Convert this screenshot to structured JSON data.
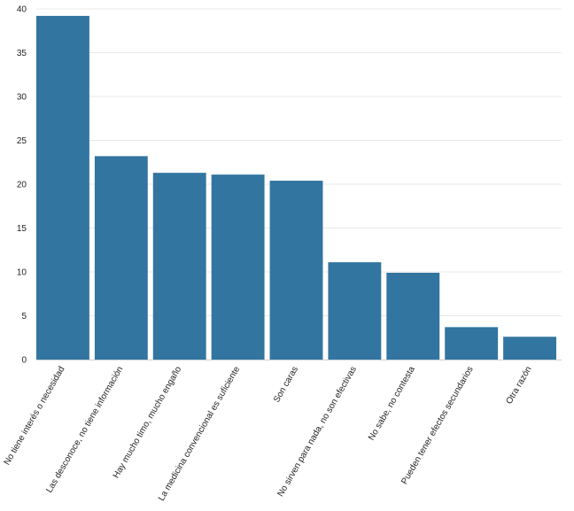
{
  "colors": {
    "bar": "#3275a1",
    "grid": "#e9e9e9",
    "axis": "#cfcfcf",
    "text": "#222222"
  },
  "chart_data": {
    "type": "bar",
    "title": "",
    "xlabel": "",
    "ylabel": "",
    "ylim": [
      0,
      40
    ],
    "yticks": [
      0,
      5,
      10,
      15,
      20,
      25,
      30,
      35,
      40
    ],
    "grid": true,
    "legend": "none",
    "categories": [
      "No tiene interés o necesidad",
      "Las desconoce, no tiene información",
      "Hay mucho timo, mucho engaño",
      "La medicina convencional es suficiente",
      "Son caras",
      "No sirven para nada, no son efectivas",
      "No sabe, no contesta",
      "Pueden tener efectos secundarios",
      "Otra razón"
    ],
    "values": [
      39.2,
      23.2,
      21.3,
      21.1,
      20.4,
      11.1,
      9.9,
      3.7,
      2.6
    ]
  }
}
